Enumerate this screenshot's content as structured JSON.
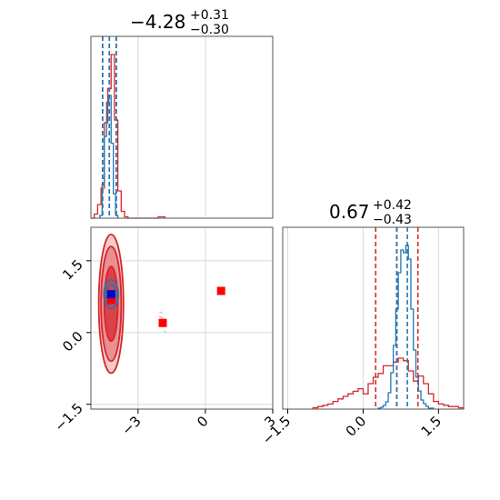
{
  "chart_data": [
    {
      "panel": "marginal-param-1",
      "type": "histogram",
      "title": {
        "main": "−4.28",
        "plus": "+0.31",
        "minus": "−0.30"
      },
      "xlim": [
        -5.1,
        3.0
      ],
      "grid": true,
      "colors": {
        "posterior_a": "#d62728",
        "posterior_b": "#1f77b4"
      },
      "series": [
        {
          "color": "#d62728",
          "bin_edges": [
            -5.1,
            -4.95,
            -4.8,
            -4.65,
            -4.5,
            -4.35,
            -4.2,
            -4.05,
            -3.9,
            -3.75,
            -3.6,
            -3.45,
            -3.3,
            -3.15,
            -3.0,
            -2.85,
            -2.7,
            -2.55,
            -2.4,
            -2.25,
            -2.1,
            -1.95,
            -1.8
          ],
          "counts": [
            0,
            3,
            10,
            22,
            70,
            95,
            120,
            72,
            20,
            5,
            1,
            0,
            0,
            0,
            0,
            0,
            0,
            0,
            0,
            0,
            1,
            1
          ],
          "quantile_lines": [
            -4.58,
            -4.28,
            -3.97
          ]
        },
        {
          "color": "#1f77b4",
          "bin_edges": [
            -4.7,
            -4.6,
            -4.5,
            -4.4,
            -4.3,
            -4.2,
            -4.1,
            -4.0,
            -3.9
          ],
          "counts": [
            2,
            25,
            60,
            85,
            90,
            55,
            18,
            2
          ],
          "quantile_lines": [
            -4.58,
            -4.28,
            -3.97
          ]
        }
      ]
    },
    {
      "panel": "marginal-param-2",
      "type": "histogram",
      "title": {
        "main": "0.67",
        "plus": "+0.42",
        "minus": "−0.43"
      },
      "xlim": [
        -1.6,
        2.0
      ],
      "xticks": [
        "−1.5",
        "0.0",
        "1.5"
      ],
      "grid": true,
      "series": [
        {
          "color": "#d62728",
          "bin_edges": [
            -1.0,
            -0.9,
            -0.8,
            -0.7,
            -0.6,
            -0.5,
            -0.4,
            -0.3,
            -0.2,
            -0.1,
            0.0,
            0.1,
            0.2,
            0.3,
            0.4,
            0.5,
            0.6,
            0.7,
            0.8,
            0.9,
            1.0,
            1.1,
            1.2,
            1.3,
            1.4,
            1.5,
            1.6,
            1.7,
            1.8,
            1.9,
            2.0
          ],
          "counts": [
            1,
            2,
            3,
            4,
            6,
            8,
            10,
            12,
            14,
            16,
            12,
            20,
            25,
            28,
            34,
            34,
            37,
            40,
            38,
            30,
            22,
            26,
            20,
            12,
            6,
            4,
            3,
            2,
            2,
            1
          ],
          "quantile_lines": [
            0.25,
            0.67,
            1.09
          ]
        },
        {
          "color": "#1f77b4",
          "bin_edges": [
            0.3,
            0.35,
            0.4,
            0.45,
            0.5,
            0.55,
            0.6,
            0.65,
            0.7,
            0.75,
            0.8,
            0.85,
            0.9,
            0.95,
            1.0,
            1.05,
            1.1,
            1.15,
            1.2,
            1.25,
            1.3,
            1.35,
            1.4
          ],
          "counts": [
            1,
            2,
            4,
            8,
            18,
            40,
            70,
            110,
            150,
            175,
            172,
            180,
            165,
            110,
            65,
            35,
            20,
            10,
            6,
            3,
            1,
            1
          ],
          "quantile_lines": [
            0.67,
            0.88
          ]
        }
      ]
    },
    {
      "panel": "joint-2d",
      "type": "scatter",
      "xlim": [
        -5.1,
        3.0
      ],
      "ylim": [
        -1.6,
        2.2
      ],
      "xticks": [
        "−3",
        "0",
        "3"
      ],
      "yticks": [
        "−1.5",
        "0.0",
        "1.5"
      ],
      "grid": true,
      "markers": [
        {
          "x": -4.2,
          "y": 0.68,
          "color": "#ff0000"
        },
        {
          "x": -1.9,
          "y": 0.2,
          "color": "#ff0000"
        },
        {
          "x": 0.7,
          "y": 0.87,
          "color": "#ff0000"
        },
        {
          "x": -4.2,
          "y": 0.8,
          "color": "#0000cc"
        }
      ],
      "contours": [
        {
          "color": "#d62728",
          "cx": -4.2,
          "cy": 0.6,
          "rx": 0.55,
          "ry": 1.45
        },
        {
          "color": "#d62728",
          "cx": -4.2,
          "cy": 0.6,
          "rx": 0.45,
          "ry": 1.2
        },
        {
          "color": "#d62728",
          "cx": -4.2,
          "cy": 0.6,
          "rx": 0.3,
          "ry": 0.78
        },
        {
          "color": "#1f77b4",
          "cx": -4.2,
          "cy": 0.8,
          "rx": 0.32,
          "ry": 0.3
        },
        {
          "color": "#1f77b4",
          "cx": -4.2,
          "cy": 0.8,
          "rx": 0.2,
          "ry": 0.2
        }
      ]
    }
  ]
}
